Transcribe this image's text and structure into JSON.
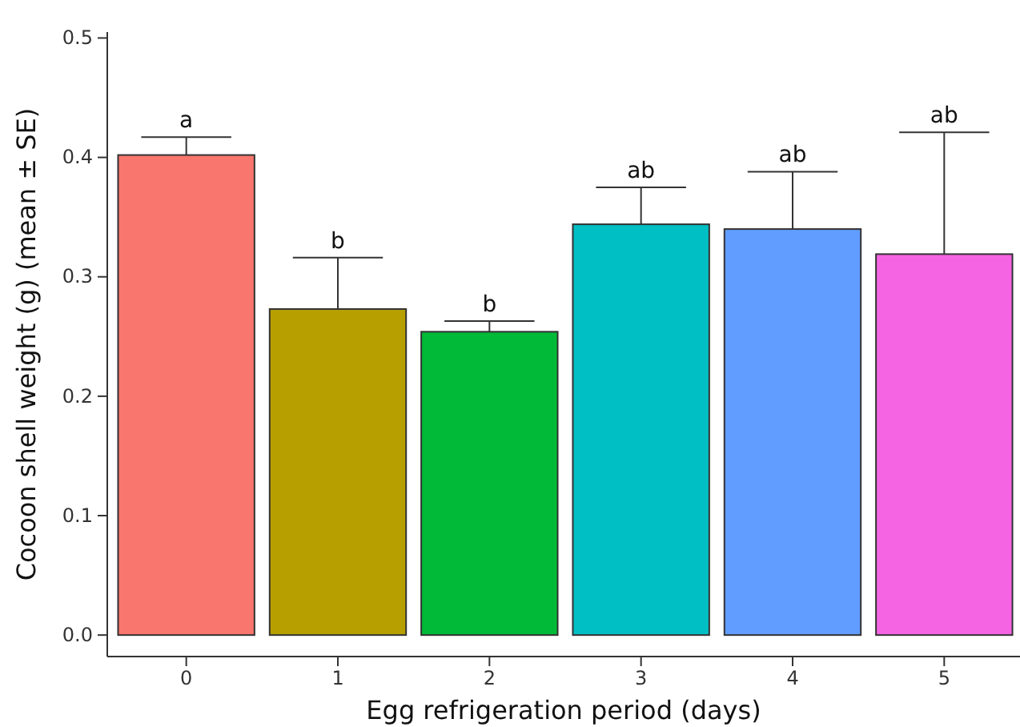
{
  "chart_data": {
    "type": "bar",
    "xlabel": "Egg refrigeration period (days)",
    "ylabel": "Cocoon shell weight (g) (mean ± SE)",
    "categories": [
      "0",
      "1",
      "2",
      "3",
      "4",
      "5"
    ],
    "values": [
      0.402,
      0.273,
      0.254,
      0.344,
      0.34,
      0.319
    ],
    "colors": [
      "#f8766d",
      "#b79f00",
      "#00ba38",
      "#00bfc4",
      "#619cff",
      "#f564e3"
    ],
    "errors": [
      [
        0.402,
        0.417
      ],
      [
        0.273,
        0.316
      ],
      [
        0.254,
        0.263
      ],
      [
        0.344,
        0.375
      ],
      [
        0.34,
        0.388
      ],
      [
        0.319,
        0.421
      ]
    ],
    "ylim": [
      -0.018,
      0.505
    ],
    "yticks": [
      {
        "value": 0,
        "label": "0.0"
      },
      0.1,
      0.2,
      0.3,
      0.4,
      0.5
    ],
    "annotations": [
      "a",
      "b",
      "b",
      "ab",
      "ab",
      "ab"
    ]
  }
}
